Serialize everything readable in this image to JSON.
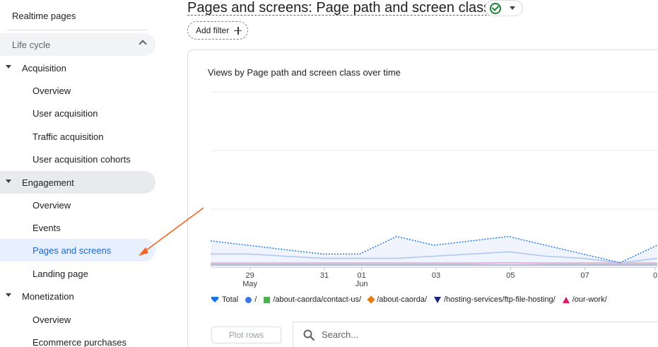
{
  "sidebar": {
    "realtime": "Realtime pages",
    "section": "Life cycle",
    "acquisition": {
      "label": "Acquisition",
      "items": [
        "Overview",
        "User acquisition",
        "Traffic acquisition",
        "User acquisition cohorts"
      ]
    },
    "engagement": {
      "label": "Engagement",
      "items": [
        "Overview",
        "Events",
        "Pages and screens",
        "Landing page"
      ]
    },
    "monetization": {
      "label": "Monetization",
      "items": [
        "Overview",
        "Ecommerce purchases"
      ]
    }
  },
  "header": {
    "title": "Pages and screens: Page path and screen class",
    "add_filter": "Add filter"
  },
  "chart": {
    "title": "Views by Page path and screen class over time"
  },
  "chart_data": {
    "type": "line",
    "x": [
      "May 28",
      "May 29",
      "May 30",
      "May 31",
      "Jun 01",
      "Jun 02",
      "Jun 03",
      "Jun 04",
      "Jun 05",
      "Jun 06",
      "Jun 07",
      "Jun 08",
      "Jun 09"
    ],
    "x_tick_labels": [
      {
        "label": "29",
        "sub": "May"
      },
      {
        "label": "31",
        "sub": ""
      },
      {
        "label": "01",
        "sub": "Jun"
      },
      {
        "label": "03",
        "sub": ""
      },
      {
        "label": "05",
        "sub": ""
      },
      {
        "label": "07",
        "sub": ""
      },
      {
        "label": "0",
        "sub": ""
      }
    ],
    "grid": true,
    "series": [
      {
        "name": "Total",
        "color": "#1a73e8",
        "dashed": true,
        "values": [
          6,
          5,
          4,
          3,
          3,
          7,
          5,
          6,
          7,
          5,
          3,
          1,
          5
        ]
      },
      {
        "name": "/",
        "color": "#3367d6",
        "dashed": false,
        "values": [
          3,
          3,
          2.5,
          2,
          2,
          2,
          2.5,
          3,
          3.5,
          2.5,
          2,
          1,
          2
        ]
      },
      {
        "name": "/about-caorda/contact-us/",
        "color": "#4caf50",
        "dashed": false,
        "values": [
          1,
          1,
          1,
          1,
          1,
          1,
          1,
          1,
          1,
          1,
          1,
          1,
          1
        ]
      },
      {
        "name": "/about-caorda/",
        "color": "#e67c13",
        "dashed": false,
        "values": [
          0.5,
          0.5,
          0.5,
          0.5,
          0.5,
          0.5,
          0.5,
          0.5,
          0.5,
          0.5,
          0.5,
          0.5,
          0.5
        ]
      },
      {
        "name": "/hosting-services/ftp-file-hosting/",
        "color": "#1a237e",
        "dashed": false,
        "values": [
          0.5,
          0.5,
          0.5,
          0.5,
          0.5,
          0.5,
          0.5,
          0.5,
          0.5,
          0.5,
          0.5,
          0.5,
          0.5
        ]
      },
      {
        "name": "/our-work/",
        "color": "#d81b60",
        "dashed": false,
        "values": [
          0.8,
          0.8,
          0.8,
          0.8,
          0.8,
          0.8,
          0.8,
          0.8,
          1,
          0.8,
          0.8,
          0.8,
          0.8
        ]
      }
    ],
    "legend": [
      {
        "name": "Total",
        "marker": "total",
        "color": "#1a73e8"
      },
      {
        "name": "/",
        "marker": "circle",
        "color": "#3b78e7"
      },
      {
        "name": "/about-caorda/contact-us/",
        "marker": "square",
        "color": "#4caf50"
      },
      {
        "name": "/about-caorda/",
        "marker": "diamond",
        "color": "#e67c13"
      },
      {
        "name": "/hosting-services/ftp-file-hosting/",
        "marker": "tri-down",
        "color": "#1a237e"
      },
      {
        "name": "/our-work/",
        "marker": "tri-up",
        "color": "#d81b60"
      }
    ],
    "legend_position": "bottom"
  },
  "table": {
    "plot_rows": "Plot rows",
    "search_placeholder": "Search..."
  },
  "annotation": {
    "arrow_color": "#f26522"
  }
}
